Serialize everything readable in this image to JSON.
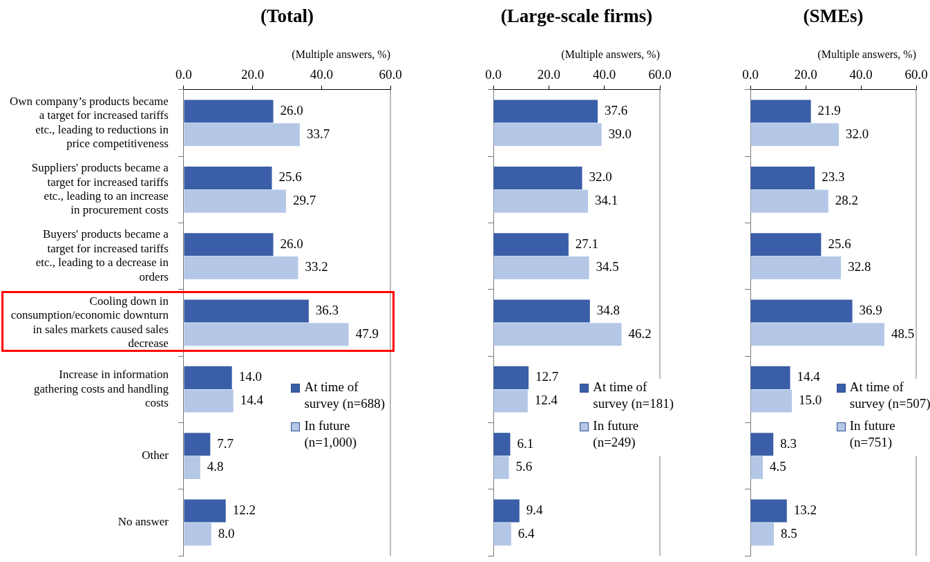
{
  "chart_data": [
    {
      "type": "bar",
      "orientation": "horizontal",
      "title": "(Total)",
      "subtitle": "(Multiple answers, %)",
      "categories": [
        "Own company’s products became a target for increased tariffs etc., leading to reductions in price competitiveness",
        "Suppliers' products became a target for increased tariffs etc., leading to an increase in procurement costs",
        "Buyers' products became a target for increased tariffs etc., leading to a decrease in orders",
        "Cooling down in consumption/economic downturn in sales markets caused sales decrease",
        "Increase in information gathering costs and handling costs",
        "Other",
        "No answer"
      ],
      "series": [
        {
          "name": "At time of survey (n=688)",
          "color": "#3a5ea8",
          "values": [
            26.0,
            25.6,
            26.0,
            36.3,
            14.0,
            7.7,
            12.2
          ],
          "value_labels": [
            "26.0",
            "25.6",
            "26.0",
            "36.3",
            "14.0",
            "7.7",
            "12.2"
          ]
        },
        {
          "name": "In future (n=1,000)",
          "color": "#b4c7e7",
          "values": [
            33.7,
            29.7,
            33.2,
            47.9,
            14.4,
            4.8,
            8.0
          ],
          "value_labels": [
            "33.7",
            "29.7",
            "33.2",
            "47.9",
            "14.4",
            "4.8",
            "8.0"
          ]
        }
      ],
      "xlim": [
        0,
        60
      ],
      "xticks": [
        {
          "value": 0,
          "label": "0.0"
        },
        {
          "value": 20,
          "label": "20.0"
        },
        {
          "value": 40,
          "label": "40.0"
        },
        {
          "value": 60,
          "label": "60.0"
        }
      ],
      "grid": false,
      "legend": "bottom right"
    },
    {
      "type": "bar",
      "orientation": "horizontal",
      "title": "(Large-scale firms)",
      "subtitle": "(Multiple answers, %)",
      "categories": [
        null,
        null,
        null,
        null,
        null,
        null,
        null
      ],
      "series": [
        {
          "name": "At time of survey (n=181)",
          "color": "#3a5ea8",
          "values": [
            37.6,
            32.0,
            27.1,
            34.8,
            12.7,
            6.1,
            9.4
          ],
          "value_labels": [
            "37.6",
            "32.0",
            "27.1",
            "34.8",
            "12.7",
            "6.1",
            "9.4"
          ]
        },
        {
          "name": "In future (n=249)",
          "color": "#b4c7e7",
          "values": [
            39.0,
            34.1,
            34.5,
            46.2,
            12.4,
            5.6,
            6.4
          ],
          "value_labels": [
            "39.0",
            "34.1",
            "34.5",
            "46.2",
            "12.4",
            "5.6",
            "6.4"
          ]
        }
      ],
      "xlim": [
        0,
        60
      ],
      "xticks": [
        {
          "value": 0,
          "label": "0.0"
        },
        {
          "value": 20,
          "label": "20.0"
        },
        {
          "value": 40,
          "label": "40.0"
        },
        {
          "value": 60,
          "label": "60.0"
        }
      ],
      "grid": false,
      "legend": "bottom right"
    },
    {
      "type": "bar",
      "orientation": "horizontal",
      "title": "(SMEs)",
      "subtitle": "(Multiple answers, %)",
      "categories": [
        null,
        null,
        null,
        null,
        null,
        null,
        null
      ],
      "series": [
        {
          "name": "At time of survey (n=507)",
          "color": "#3a5ea8",
          "values": [
            21.9,
            23.3,
            25.6,
            36.9,
            14.4,
            8.3,
            13.2
          ],
          "value_labels": [
            "21.9",
            "23.3",
            "25.6",
            "36.9",
            "14.4",
            "8.3",
            "13.2"
          ]
        },
        {
          "name": "In future (n=751)",
          "color": "#b4c7e7",
          "values": [
            32.0,
            28.2,
            32.8,
            48.5,
            15.0,
            4.5,
            8.5
          ],
          "value_labels": [
            "32.0",
            "28.2",
            "32.8",
            "48.5",
            "15.0",
            "4.5",
            "8.5"
          ]
        }
      ],
      "xlim": [
        0,
        60
      ],
      "xticks": [
        {
          "value": 0,
          "label": "0.0"
        },
        {
          "value": 20,
          "label": "20.0"
        },
        {
          "value": 40,
          "label": "40.0"
        },
        {
          "value": 60,
          "label": "60.0"
        }
      ],
      "grid": false,
      "legend": "bottom right"
    }
  ]
}
